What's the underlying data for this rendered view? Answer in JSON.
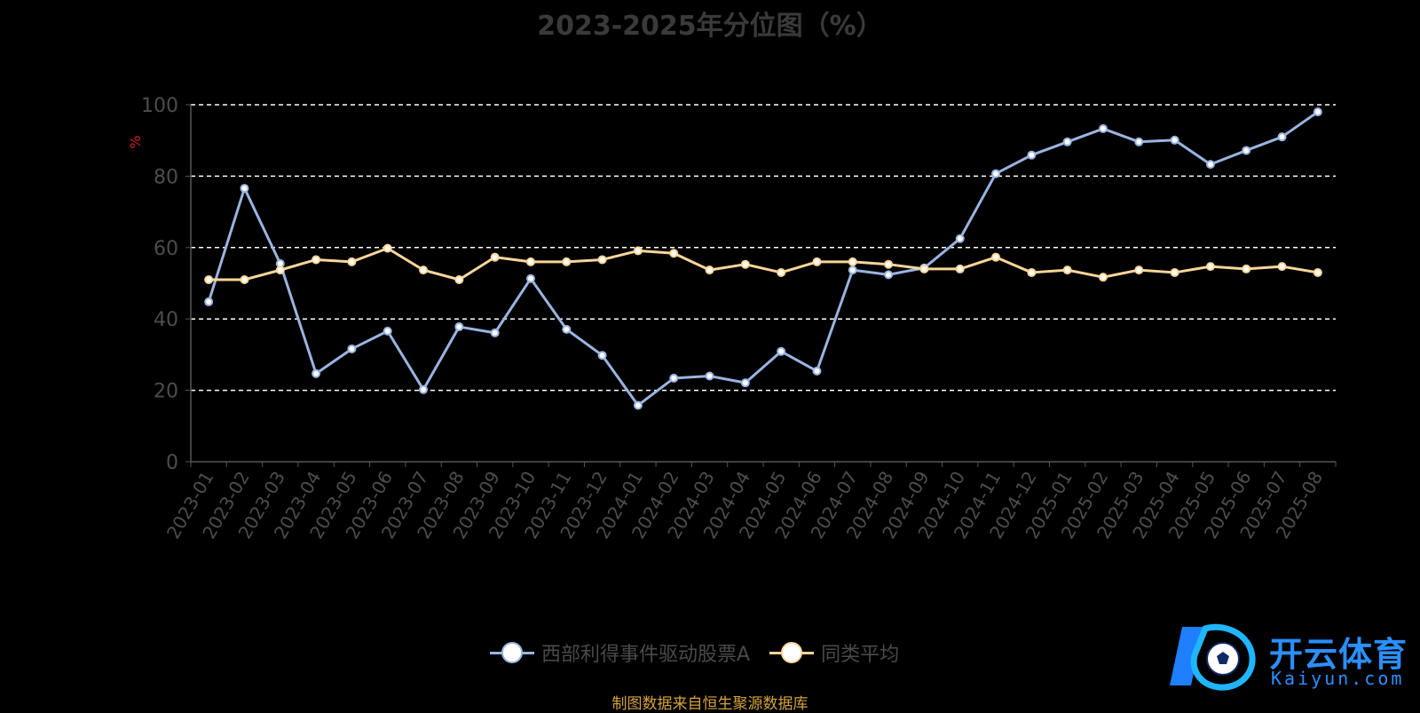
{
  "chart_data": {
    "type": "line",
    "title": "2023-2025年分位图（%）",
    "ylabel": "%",
    "ylim": [
      0,
      100
    ],
    "yticks": [
      "0",
      "20",
      "40",
      "60",
      "80",
      "100"
    ],
    "grid": true,
    "legend_position": "bottom-center",
    "categories": [
      "2023-01",
      "2023-02",
      "2023-03",
      "2023-04",
      "2023-05",
      "2023-06",
      "2023-07",
      "2023-08",
      "2023-09",
      "2023-10",
      "2023-11",
      "2023-12",
      "2024-01",
      "2024-02",
      "2024-03",
      "2024-04",
      "2024-05",
      "2024-06",
      "2024-07",
      "2024-08",
      "2024-09",
      "2024-10",
      "2024-11",
      "2024-12",
      "2025-01",
      "2025-02",
      "2025-03",
      "2025-04",
      "2025-05",
      "2025-06",
      "2025-07",
      "2025-08"
    ],
    "series": [
      {
        "name": "西部利得事件驱动股票A",
        "color": "#9ab4e0",
        "values": [
          44.8,
          76.6,
          55.5,
          24.7,
          31.6,
          36.6,
          20.2,
          37.8,
          36.1,
          51.3,
          37.1,
          29.8,
          15.8,
          23.4,
          24.0,
          22.1,
          30.9,
          25.4,
          53.7,
          52.4,
          54.3,
          62.5,
          80.7,
          85.9,
          89.6,
          93.3,
          89.6,
          90.1,
          83.3,
          87.2,
          91.0,
          98.0
        ]
      },
      {
        "name": "同类平均",
        "color": "#fbd699",
        "values": [
          51.0,
          51.0,
          53.7,
          56.6,
          56.0,
          59.8,
          53.7,
          51.0,
          57.3,
          56.0,
          56.0,
          56.6,
          59.1,
          58.4,
          53.7,
          55.3,
          53.0,
          56.0,
          56.0,
          55.3,
          54.0,
          54.0,
          57.3,
          53.0,
          53.7,
          51.7,
          53.7,
          53.0,
          54.7,
          54.0,
          54.7,
          53.0
        ]
      }
    ]
  },
  "source_note": "制图数据来自恒生聚源数据库",
  "watermark": {
    "name_cn": "开云体育",
    "name_en": "Kaiyun.com"
  }
}
